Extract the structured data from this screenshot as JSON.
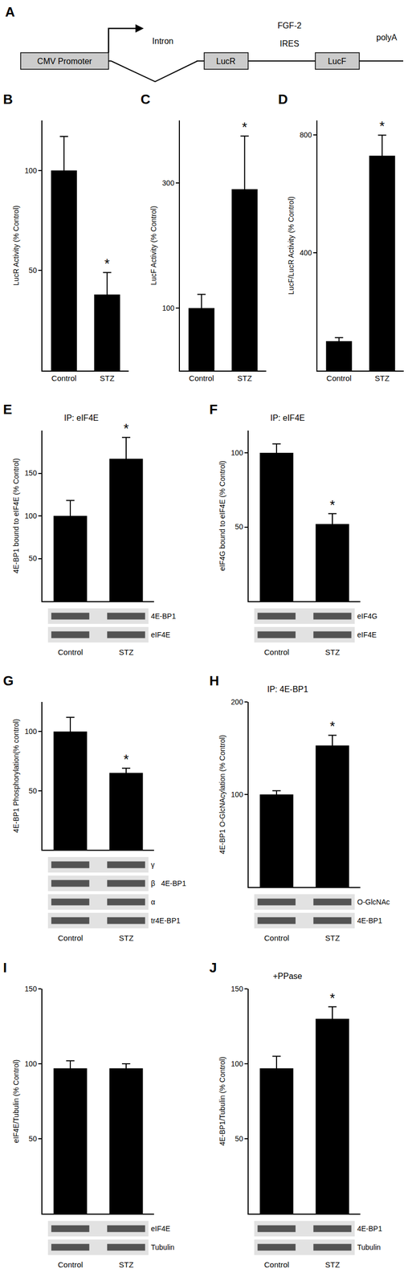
{
  "diagram": {
    "panel": "A",
    "promoter": "CMV Promoter",
    "intron": "Intron",
    "genes": [
      "LucR",
      "LucF"
    ],
    "ires": [
      "FGF-2",
      "IRES"
    ],
    "tail": "polyA"
  },
  "chart_data": [
    {
      "panel": "B",
      "type": "bar",
      "categories": [
        "Control",
        "STZ"
      ],
      "values": [
        100,
        38
      ],
      "errors": [
        17,
        11
      ],
      "color": "#000000",
      "y_label": "LucR Activity (% Control)",
      "ylim": [
        0,
        125
      ],
      "yticks": [
        50,
        100
      ],
      "annotations": [
        {
          "text": "*",
          "x": "STZ"
        }
      ]
    },
    {
      "panel": "C",
      "type": "bar",
      "categories": [
        "Control",
        "STZ"
      ],
      "values": [
        100,
        290
      ],
      "errors": [
        22,
        85
      ],
      "color": "#000000",
      "y_label": "LucF Activity (% Control)",
      "ylim": [
        0,
        400
      ],
      "yticks": [
        100,
        300
      ],
      "annotations": [
        {
          "text": "*",
          "x": "STZ"
        }
      ]
    },
    {
      "panel": "D",
      "type": "bar",
      "categories": [
        "Control",
        "STZ"
      ],
      "values": [
        100,
        730
      ],
      "errors": [
        12,
        70
      ],
      "color": "#000000",
      "y_label": "LucF/LucR Activity (% Control)",
      "ylim": [
        0,
        850
      ],
      "yticks": [
        400,
        800
      ],
      "annotations": [
        {
          "text": "*",
          "x": "STZ"
        }
      ]
    },
    {
      "panel": "E",
      "type": "bar",
      "subtitle": "IP: eIF4E",
      "categories": [
        "Control",
        "STZ"
      ],
      "values": [
        100,
        167
      ],
      "errors": [
        18,
        25
      ],
      "color": "#000000",
      "y_label": "4E-BP1 bound to eIF4E (% Control)",
      "ylim": [
        0,
        200
      ],
      "yticks": [
        50,
        100,
        150
      ],
      "annotations": [
        {
          "text": "*",
          "x": "STZ"
        }
      ],
      "blot_labels": [
        "4E-BP1",
        "eIF4E"
      ]
    },
    {
      "panel": "F",
      "type": "bar",
      "subtitle": "IP: eIF4E",
      "categories": [
        "Control",
        "STZ"
      ],
      "values": [
        100,
        52
      ],
      "errors": [
        6,
        7
      ],
      "color": "#000000",
      "y_label": "eIF4G bound to eIF4E (% Control)",
      "ylim": [
        0,
        115
      ],
      "yticks": [
        50,
        100
      ],
      "annotations": [
        {
          "text": "*",
          "x": "STZ"
        }
      ],
      "blot_labels": [
        "eIF4G",
        "eIF4E"
      ]
    },
    {
      "panel": "G",
      "type": "bar",
      "categories": [
        "Control",
        "STZ"
      ],
      "values": [
        100,
        65
      ],
      "errors": [
        12,
        4
      ],
      "color": "#000000",
      "y_label": "4E-BP1 Phosphorylation(% control)",
      "ylim": [
        0,
        125
      ],
      "yticks": [
        50,
        100
      ],
      "annotations": [
        {
          "text": "*",
          "x": "STZ"
        }
      ],
      "blot_labels": [
        "γ",
        "β   4E-BP1",
        "α",
        "tr4E-BP1"
      ]
    },
    {
      "panel": "H",
      "type": "bar",
      "subtitle": "IP: 4E-BP1",
      "categories": [
        "Control",
        "STZ"
      ],
      "values": [
        100,
        153
      ],
      "errors": [
        4,
        11
      ],
      "color": "#000000",
      "y_label": "4E-BP1 O-GlcNAcylation (% Control)",
      "ylim": [
        0,
        200
      ],
      "yticks": [
        100,
        200
      ],
      "annotations": [
        {
          "text": "*",
          "x": "STZ"
        }
      ],
      "blot_labels": [
        "O-GlcNAc",
        "4E-BP1"
      ]
    },
    {
      "panel": "I",
      "type": "bar",
      "categories": [
        "Control",
        "STZ"
      ],
      "values": [
        97,
        97
      ],
      "errors": [
        5,
        3
      ],
      "color": "#000000",
      "y_label": "eIF4E/Tubulin (% Control)",
      "ylim": [
        0,
        150
      ],
      "yticks": [
        50,
        100,
        150
      ],
      "blot_labels": [
        "eIF4E",
        "Tubulin"
      ]
    },
    {
      "panel": "J",
      "type": "bar",
      "subtitle": "+PPase",
      "categories": [
        "Control",
        "STZ"
      ],
      "values": [
        97,
        130
      ],
      "errors": [
        8,
        8
      ],
      "color": "#000000",
      "y_label": "4E-BP1/Tubulin (% Control)",
      "ylim": [
        0,
        150
      ],
      "yticks": [
        50,
        100,
        150
      ],
      "annotations": [
        {
          "text": "*",
          "x": "STZ"
        }
      ],
      "blot_labels": [
        "4E-BP1",
        "Tubulin"
      ]
    }
  ]
}
